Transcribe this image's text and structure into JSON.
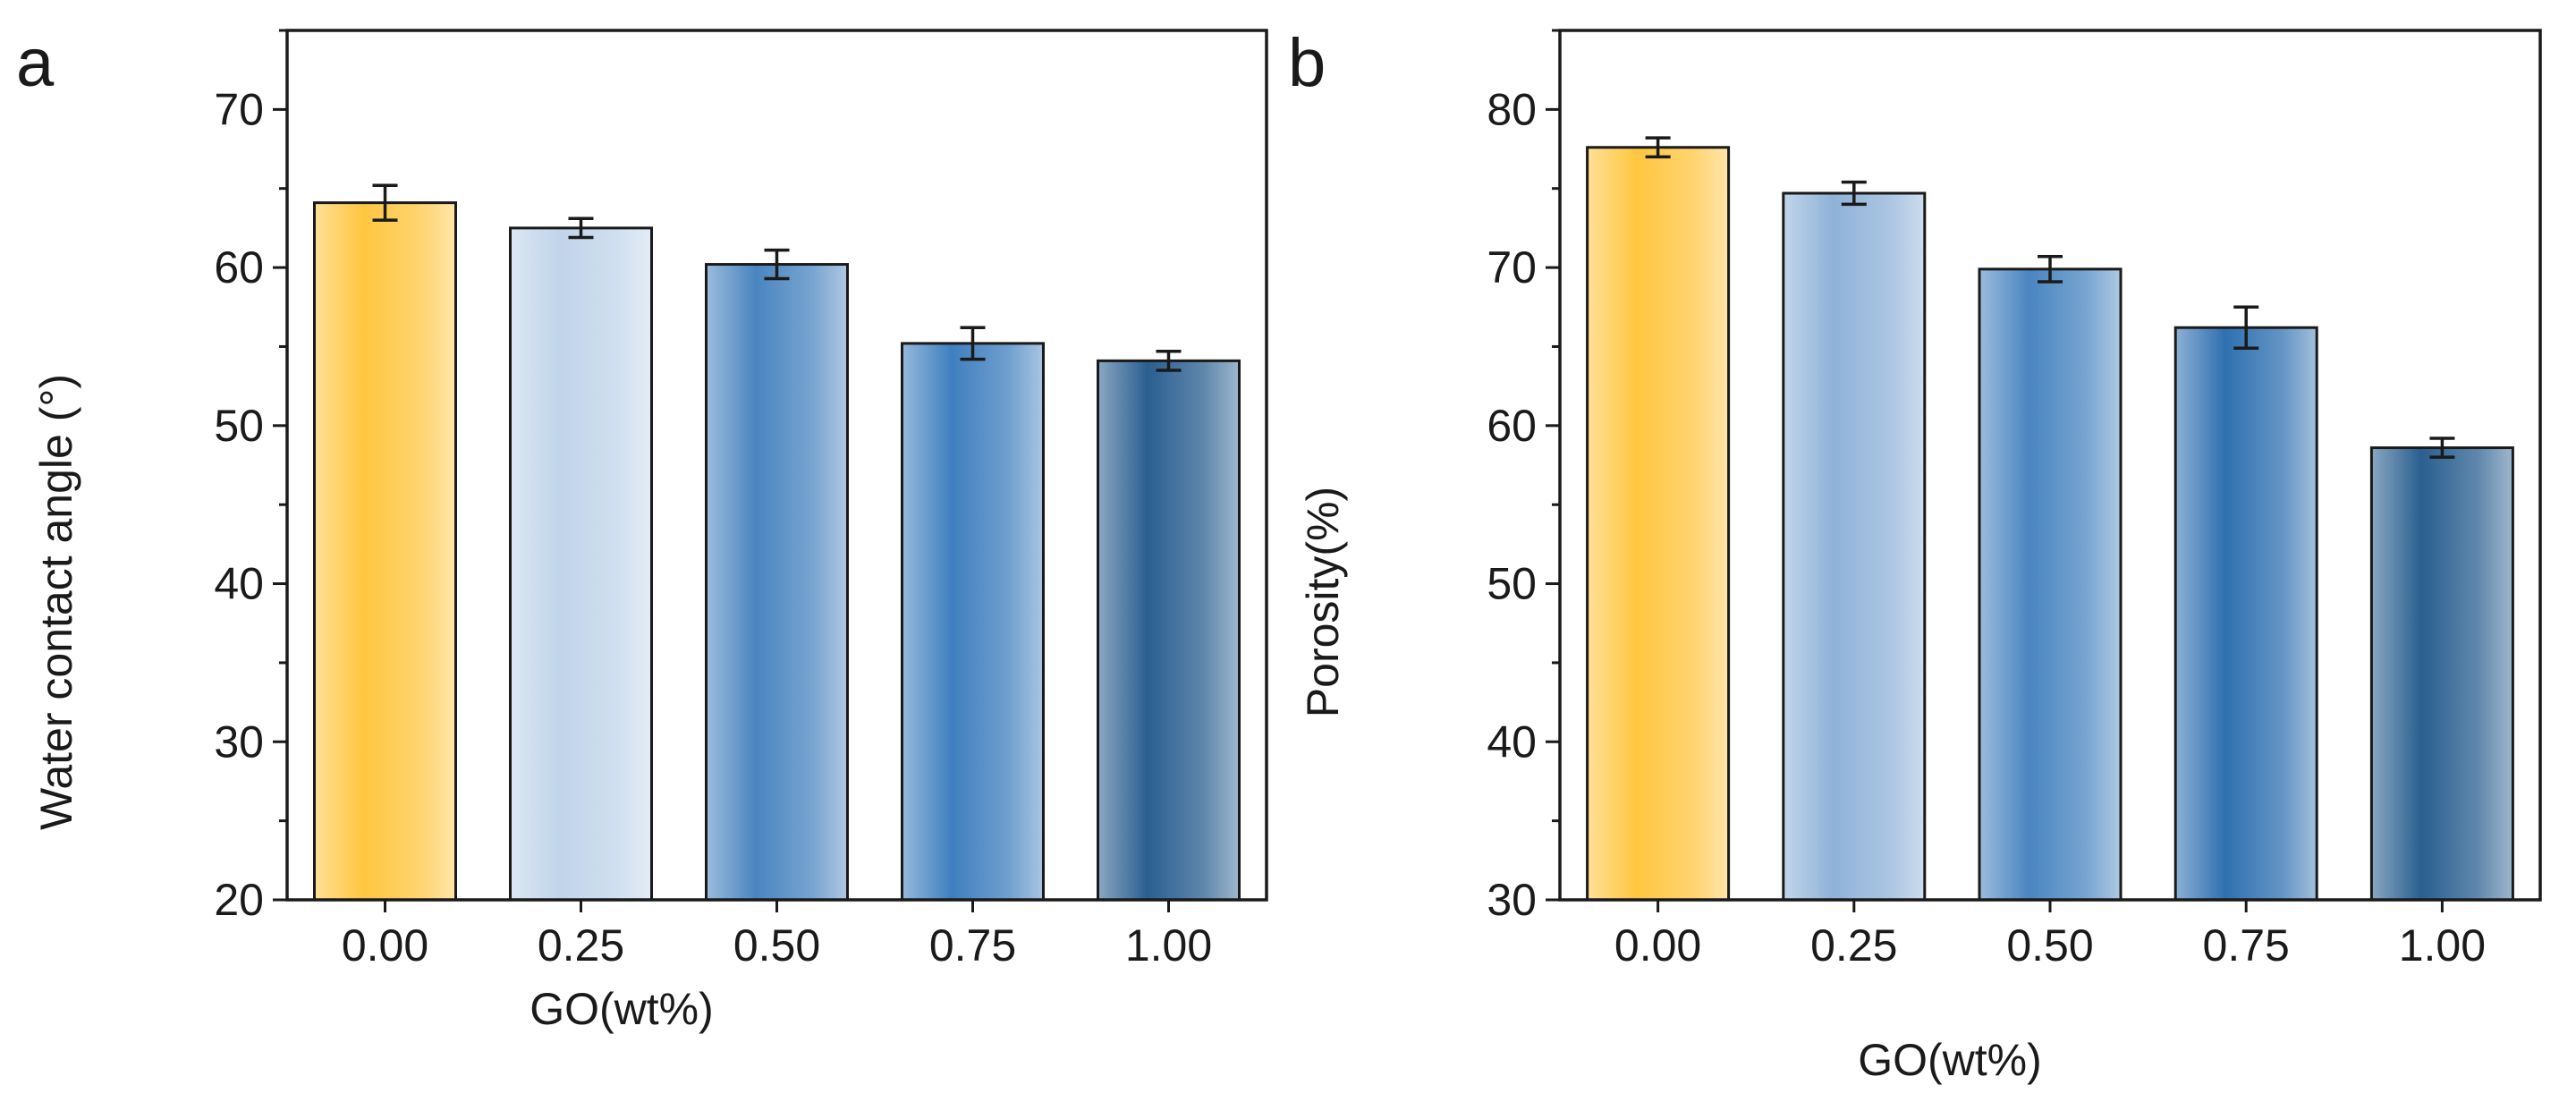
{
  "figure": {
    "panels": [
      {
        "letter": "a",
        "chart_key": 0
      },
      {
        "letter": "b",
        "chart_key": 1
      }
    ]
  },
  "chart_data": [
    {
      "type": "bar",
      "panel": "a",
      "categories": [
        "0.00",
        "0.25",
        "0.50",
        "0.75",
        "1.00"
      ],
      "values": [
        64.1,
        62.5,
        60.2,
        55.2,
        54.1
      ],
      "errors": [
        1.1,
        0.6,
        0.9,
        1.0,
        0.6
      ],
      "xlabel": "GO(wt%)",
      "ylabel": "Water contact angle (°)",
      "ylim": [
        20,
        75
      ],
      "yticks": [
        20,
        30,
        40,
        50,
        60,
        70
      ],
      "yticks_minor_step": 5,
      "grid": false,
      "legend": "none",
      "bar_colors": [
        "#ffc640",
        "#c0d4ea",
        "#4a85c0",
        "#3f7fbf",
        "#2a5f90"
      ]
    },
    {
      "type": "bar",
      "panel": "b",
      "categories": [
        "0.00",
        "0.25",
        "0.50",
        "0.75",
        "1.00"
      ],
      "values": [
        77.6,
        74.7,
        69.9,
        66.2,
        58.6
      ],
      "errors": [
        0.6,
        0.7,
        0.8,
        1.3,
        0.6
      ],
      "xlabel": "GO(wt%)",
      "ylabel": "Porosity(%)",
      "ylim": [
        30,
        85
      ],
      "yticks": [
        30,
        40,
        50,
        60,
        70,
        80
      ],
      "yticks_minor_step": 5,
      "grid": false,
      "legend": "none",
      "bar_colors": [
        "#ffc640",
        "#8fb2d8",
        "#4a85c0",
        "#2f70b0",
        "#2a5f90"
      ]
    }
  ]
}
